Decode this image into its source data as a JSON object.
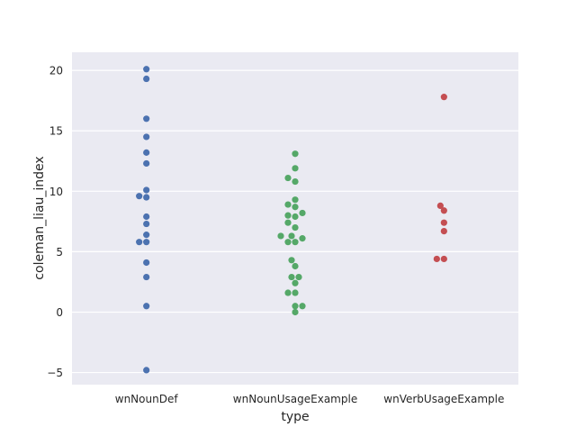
{
  "chart_data": {
    "type": "scatter",
    "subtype": "swarmplot",
    "title": "",
    "xlabel": "type",
    "ylabel": "coleman_liau_index",
    "categories": [
      "wnNounDef",
      "wnNounUsageExample",
      "wnVerbUsageExample"
    ],
    "ylim": [
      -6,
      21.5
    ],
    "yticks": [
      -5,
      0,
      5,
      10,
      15,
      20
    ],
    "ytick_labels": [
      "−5",
      "0",
      "5",
      "10",
      "15",
      "20"
    ],
    "grid": true,
    "background_color": "#eaeaf2",
    "grid_color": "#ffffff",
    "series": [
      {
        "category": "wnNounDef",
        "color": "#4c72b0",
        "points": [
          {
            "y": 20.1,
            "offset": 0
          },
          {
            "y": 19.3,
            "offset": 0
          },
          {
            "y": 16.0,
            "offset": 0
          },
          {
            "y": 14.5,
            "offset": 0
          },
          {
            "y": 13.2,
            "offset": 0
          },
          {
            "y": 12.3,
            "offset": 0
          },
          {
            "y": 10.1,
            "offset": 0
          },
          {
            "y": 9.6,
            "offset": -1
          },
          {
            "y": 9.5,
            "offset": 0
          },
          {
            "y": 7.9,
            "offset": 0
          },
          {
            "y": 7.3,
            "offset": 0
          },
          {
            "y": 6.4,
            "offset": 0
          },
          {
            "y": 5.8,
            "offset": -1
          },
          {
            "y": 5.8,
            "offset": 0
          },
          {
            "y": 4.1,
            "offset": 0
          },
          {
            "y": 2.9,
            "offset": 0
          },
          {
            "y": 0.5,
            "offset": 0
          },
          {
            "y": -4.8,
            "offset": 0
          }
        ]
      },
      {
        "category": "wnNounUsageExample",
        "color": "#55a868",
        "points": [
          {
            "y": 13.1,
            "offset": 0
          },
          {
            "y": 11.9,
            "offset": 0
          },
          {
            "y": 11.1,
            "offset": -1
          },
          {
            "y": 10.8,
            "offset": 0
          },
          {
            "y": 9.3,
            "offset": 0
          },
          {
            "y": 8.9,
            "offset": -1
          },
          {
            "y": 8.7,
            "offset": 0
          },
          {
            "y": 8.2,
            "offset": 1
          },
          {
            "y": 8.0,
            "offset": -1
          },
          {
            "y": 7.9,
            "offset": 0
          },
          {
            "y": 7.4,
            "offset": -1
          },
          {
            "y": 7.0,
            "offset": 0
          },
          {
            "y": 6.3,
            "offset": -2
          },
          {
            "y": 6.3,
            "offset": -0.5
          },
          {
            "y": 6.1,
            "offset": 1
          },
          {
            "y": 5.8,
            "offset": -1
          },
          {
            "y": 5.8,
            "offset": 0
          },
          {
            "y": 4.3,
            "offset": -0.5
          },
          {
            "y": 3.8,
            "offset": 0
          },
          {
            "y": 2.9,
            "offset": -0.5
          },
          {
            "y": 2.9,
            "offset": 0.5
          },
          {
            "y": 2.4,
            "offset": 0
          },
          {
            "y": 1.6,
            "offset": -1
          },
          {
            "y": 1.6,
            "offset": 0
          },
          {
            "y": 0.5,
            "offset": 0
          },
          {
            "y": 0.5,
            "offset": 1
          },
          {
            "y": 0.0,
            "offset": 0
          }
        ]
      },
      {
        "category": "wnVerbUsageExample",
        "color": "#c44e52",
        "points": [
          {
            "y": 17.8,
            "offset": 0
          },
          {
            "y": 8.8,
            "offset": -0.5
          },
          {
            "y": 8.4,
            "offset": 0
          },
          {
            "y": 7.4,
            "offset": 0
          },
          {
            "y": 6.7,
            "offset": 0
          },
          {
            "y": 4.4,
            "offset": -1
          },
          {
            "y": 4.4,
            "offset": 0
          }
        ]
      }
    ]
  }
}
